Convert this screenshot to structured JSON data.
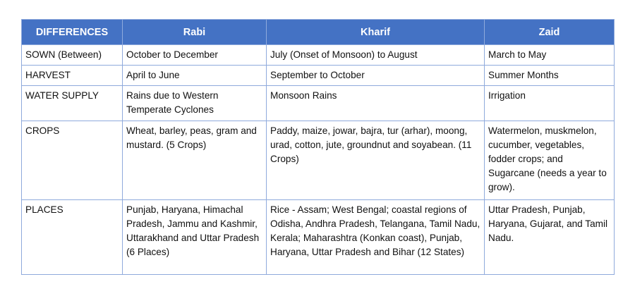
{
  "table": {
    "headers": [
      "DIFFERENCES",
      "Rabi",
      "Kharif",
      "Zaid"
    ],
    "rows": [
      [
        "SOWN (Between)",
        "October to December",
        "July (Onset of Monsoon) to August",
        "March to May"
      ],
      [
        "HARVEST",
        "April to June",
        "September to October",
        "Summer Months"
      ],
      [
        "WATER SUPPLY",
        "Rains due to Western Temperate Cyclones",
        "Monsoon Rains",
        "Irrigation"
      ],
      [
        "CROPS",
        "Wheat, barley, peas, gram and mustard. (5 Crops)",
        "Paddy, maize, jowar, bajra, tur (arhar), moong, urad, cotton, jute, groundnut and soyabean. (11 Crops)",
        "Watermelon, muskmelon, cucumber, vegetables, fodder crops; and Sugarcane (needs a year to grow)."
      ],
      [
        "PLACES",
        "Punjab, Haryana, Himachal Pradesh, Jammu and Kashmir, Uttarakhand and Uttar Pradesh (6 Places)",
        "Rice - Assam; West Bengal; coastal regions of Odisha, Andhra Pradesh, Telangana, Tamil Nadu, Kerala; Maharashtra (Konkan coast), Punjab, Haryana, Uttar Pradesh and Bihar (12 States)",
        "Uttar Pradesh, Punjab, Haryana, Gujarat, and Tamil Nadu."
      ]
    ]
  },
  "colors": {
    "header_bg": "#4472C4",
    "border": "#8FAADC",
    "header_text": "#FFFFFF"
  }
}
